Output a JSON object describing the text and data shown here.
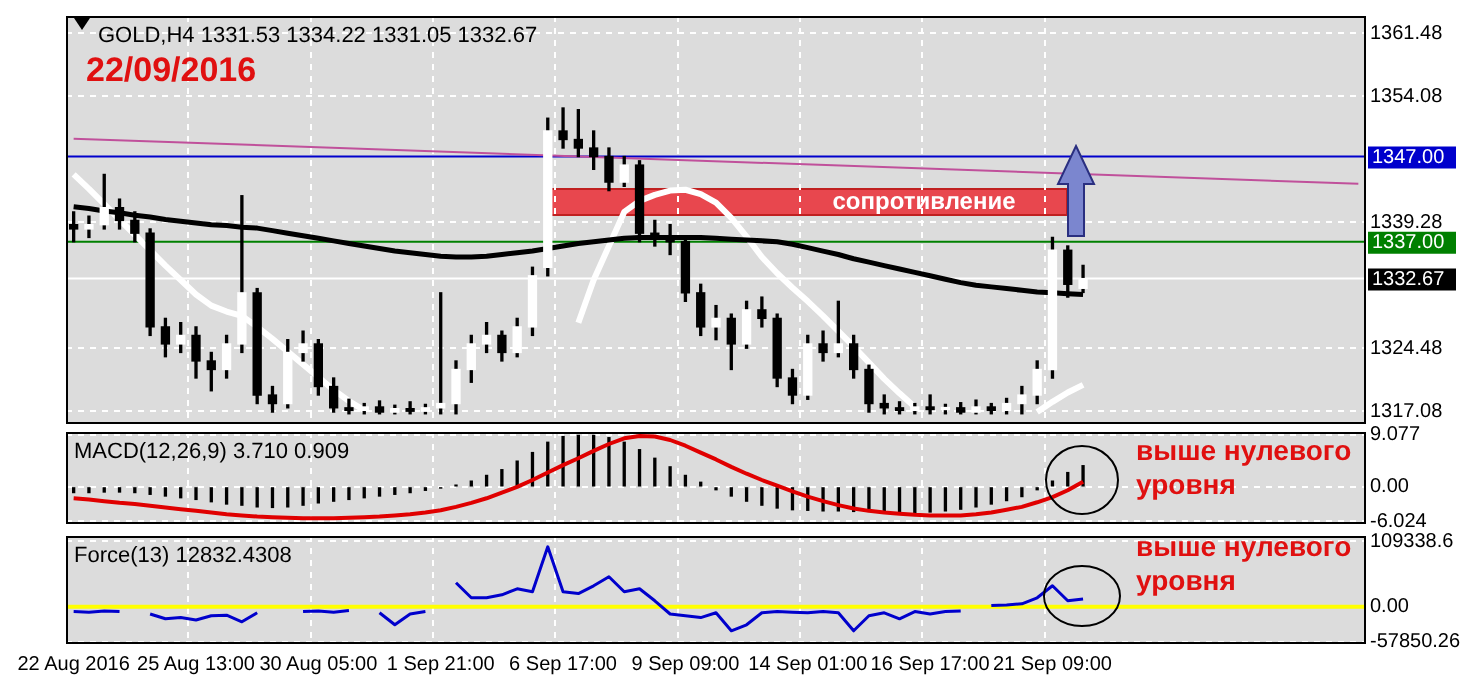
{
  "chart_data": [
    {
      "type": "candlestick",
      "title": "GOLD,H4 1331.53 1334.22 1331.05 1332.67",
      "categories": [
        null,
        null,
        null,
        null,
        null,
        null,
        null,
        null,
        null,
        null,
        null,
        null,
        null,
        null,
        null,
        null,
        null,
        null,
        null,
        null,
        null,
        null,
        null,
        null,
        null,
        null,
        null,
        null,
        null,
        null,
        null,
        null,
        null,
        null,
        null,
        null,
        null,
        null,
        null,
        null,
        null,
        null,
        null,
        null,
        null,
        null,
        null,
        null,
        null,
        null,
        null,
        null,
        null,
        null,
        null,
        null,
        null,
        null,
        null,
        null,
        null,
        null,
        null,
        null,
        null,
        null,
        null,
        null,
        null,
        null,
        null,
        null,
        null,
        null,
        null,
        null,
        null,
        null,
        null,
        null,
        null,
        null,
        null,
        null,
        null
      ],
      "ohlc": [
        [
          1339,
          1340.5,
          1337,
          1338.5
        ],
        [
          1338.5,
          1340,
          1337.5,
          1339
        ],
        [
          1339,
          1344.9,
          1338.5,
          1341
        ],
        [
          1341,
          1342,
          1338.5,
          1339.5
        ],
        [
          1339.5,
          1340.5,
          1337,
          1338
        ],
        [
          1338,
          1338.5,
          1326,
          1327
        ],
        [
          1327,
          1328,
          1323.5,
          1325
        ],
        [
          1325,
          1327.5,
          1324,
          1326
        ],
        [
          1326,
          1327,
          1321,
          1323
        ],
        [
          1323,
          1324,
          1319.5,
          1322
        ],
        [
          1322,
          1326,
          1321,
          1325
        ],
        [
          1325,
          1342.4,
          1324,
          1331
        ],
        [
          1331,
          1331.5,
          1318,
          1319
        ],
        [
          1319,
          1320,
          1317,
          1318
        ],
        [
          1318,
          1325.5,
          1317.5,
          1324
        ],
        [
          1324,
          1326.5,
          1323,
          1325
        ],
        [
          1325,
          1325.5,
          1319,
          1320
        ],
        [
          1320,
          1321,
          1317,
          1317.5
        ],
        [
          1317.5,
          1318.5,
          1316.8,
          1317.2
        ],
        [
          1317.2,
          1318,
          1316.8,
          1317.6
        ],
        [
          1317.6,
          1318.3,
          1316.8,
          1317
        ],
        [
          1317,
          1317.8,
          1316.8,
          1317.4
        ],
        [
          1317.4,
          1318.2,
          1316.8,
          1317.1
        ],
        [
          1317.1,
          1317.9,
          1316.8,
          1317.5
        ],
        [
          1317.5,
          1331,
          1316.8,
          1318
        ],
        [
          1318,
          1323,
          1316.8,
          1322
        ],
        [
          1322,
          1326,
          1320.5,
          1325
        ],
        [
          1325,
          1327.5,
          1324,
          1326
        ],
        [
          1326,
          1326.5,
          1323,
          1324
        ],
        [
          1324,
          1328,
          1323.5,
          1327
        ],
        [
          1327,
          1334,
          1326,
          1333
        ],
        [
          1334,
          1351.5,
          1333,
          1350
        ],
        [
          1350,
          1352.7,
          1348,
          1349
        ],
        [
          1349,
          1352.5,
          1347,
          1348
        ],
        [
          1348,
          1350,
          1345.5,
          1347
        ],
        [
          1347,
          1348,
          1343,
          1344
        ],
        [
          1344,
          1347,
          1343.5,
          1346
        ],
        [
          1346,
          1346.5,
          1337,
          1338
        ],
        [
          1338,
          1339.5,
          1336.5,
          1337.5
        ],
        [
          1337.5,
          1339,
          1335.5,
          1337
        ],
        [
          1337,
          1337.5,
          1330,
          1331
        ],
        [
          1331,
          1332,
          1326,
          1327
        ],
        [
          1327,
          1329.5,
          1325.5,
          1328
        ],
        [
          1328,
          1328.5,
          1322,
          1325
        ],
        [
          1325,
          1330,
          1324.5,
          1329
        ],
        [
          1329,
          1330.5,
          1327,
          1328
        ],
        [
          1328,
          1328.5,
          1320,
          1321
        ],
        [
          1321,
          1322,
          1318,
          1319
        ],
        [
          1319,
          1326,
          1318.5,
          1325
        ],
        [
          1325,
          1326.5,
          1323,
          1324
        ],
        [
          1324,
          1330,
          1323.5,
          1325
        ],
        [
          1325,
          1326,
          1321,
          1322
        ],
        [
          1322,
          1322.5,
          1317,
          1318
        ],
        [
          1318,
          1319,
          1316.8,
          1317.5
        ],
        [
          1317.5,
          1318.2,
          1316.8,
          1317.2
        ],
        [
          1317.2,
          1318,
          1316.8,
          1317.6
        ],
        [
          1317.6,
          1319,
          1316.8,
          1317.3
        ],
        [
          1317.3,
          1317.9,
          1316.8,
          1317.5
        ],
        [
          1317.5,
          1318.1,
          1316.8,
          1317
        ],
        [
          1317,
          1318.4,
          1316.8,
          1317.6
        ],
        [
          1317.6,
          1318,
          1316.8,
          1317.2
        ],
        [
          1317.2,
          1318.6,
          1316.8,
          1318
        ],
        [
          1318,
          1320,
          1316.8,
          1319
        ],
        [
          1319,
          1323,
          1318,
          1322
        ],
        [
          1322,
          1337.5,
          1321,
          1336
        ],
        [
          1336,
          1336.5,
          1330.5,
          1332
        ],
        [
          1331.53,
          1334.22,
          1331.05,
          1332.67
        ],
        null,
        null,
        null,
        null,
        null,
        null,
        null,
        null,
        null,
        null,
        null,
        null,
        null,
        null,
        null,
        null,
        null,
        null
      ],
      "series": [
        {
          "type": "line",
          "color": "#000000",
          "values": [
            1341.1,
            1340.9,
            1340.6,
            1340.4,
            1340.1,
            1339.9,
            1339.6,
            1339.4,
            1339.2,
            1339.0,
            1338.9,
            1338.7,
            1338.6,
            1338.3,
            1338.0,
            1337.7,
            1337.4,
            1337.1,
            1336.8,
            1336.5,
            1336.2,
            1335.9,
            1335.7,
            1335.5,
            1335.3,
            1335.2,
            1335.2,
            1335.3,
            1335.5,
            1335.7,
            1335.9,
            1336.2,
            1336.5,
            1336.8,
            1337.0,
            1337.2,
            1337.4,
            1337.5,
            1337.5,
            1337.5,
            1337.5,
            1337.5,
            1337.4,
            1337.3,
            1337.2,
            1337.1,
            1337.0,
            1336.7,
            1336.3,
            1335.9,
            1335.5,
            1335.0,
            1334.6,
            1334.2,
            1333.8,
            1333.4,
            1333.0,
            1332.6,
            1332.2,
            1331.9,
            1331.7,
            1331.5,
            1331.3,
            1331.1,
            1331.0,
            1330.9,
            1330.8,
            null,
            null,
            null,
            null,
            null,
            null,
            null,
            null,
            null,
            null,
            null,
            null,
            null,
            null,
            null,
            null,
            null,
            null
          ]
        },
        {
          "type": "line",
          "color": "#ffffff",
          "values": [
            1344.9,
            1343.2,
            1341.4,
            1339.6,
            1337.8,
            1336.0,
            1334.2,
            1332.5,
            1330.8,
            1329.5,
            1328.8,
            1328.3,
            1327.0,
            1325.6,
            1324.1,
            1322.6,
            1321.1,
            1319.6,
            1318.3,
            1317.2,
            null,
            null,
            null,
            null,
            null,
            null,
            null,
            null,
            null,
            null,
            null,
            null,
            null,
            1327.5,
            1332.5,
            1336.5,
            1340.5,
            1341.8,
            1342.5,
            1343.0,
            1343.1,
            1342.6,
            1341.6,
            1339.8,
            1337.6,
            1335.2,
            1333.3,
            1331.6,
            1330.0,
            1328.3,
            1326.5,
            1324.7,
            1322.8,
            1320.9,
            1319.2,
            1317.6,
            null,
            null,
            null,
            null,
            null,
            null,
            null,
            1317.0,
            1318.2,
            1319.3,
            1320.2,
            null,
            null,
            null,
            null,
            null,
            null,
            null,
            null,
            null,
            null,
            null,
            null,
            null,
            null,
            null,
            null,
            null,
            null
          ]
        },
        {
          "type": "line",
          "color": "#c0509b",
          "values": [
            1349.1,
            null,
            null,
            null,
            null,
            null,
            null,
            null,
            null,
            null,
            null,
            null,
            null,
            null,
            null,
            null,
            null,
            null,
            null,
            null,
            null,
            null,
            null,
            null,
            null,
            null,
            null,
            null,
            null,
            null,
            null,
            null,
            null,
            null,
            null,
            null,
            null,
            null,
            null,
            null,
            null,
            null,
            null,
            null,
            null,
            null,
            null,
            null,
            null,
            null,
            null,
            null,
            null,
            null,
            null,
            null,
            null,
            null,
            null,
            null,
            null,
            null,
            null,
            null,
            null,
            null,
            null,
            null,
            null,
            null,
            null,
            null,
            null,
            null,
            null,
            null,
            null,
            null,
            null,
            null,
            null,
            null,
            null,
            null,
            1343.8
          ]
        }
      ],
      "ylim": [
        1315.6,
        1363.5
      ],
      "yticks": [
        1361.48,
        1354.08,
        1339.28,
        1324.48,
        1317.08
      ],
      "ref_lines": [
        {
          "axis": "y",
          "value": 1347,
          "label": "1347.00",
          "color": "#0000cc"
        },
        {
          "axis": "y",
          "value": 1337,
          "label": "1337.00",
          "color": "#008000"
        },
        {
          "axis": "y",
          "value": 1332.67,
          "label": "1332.67",
          "color": "#ffffff"
        }
      ],
      "annotations": [
        "22/09/2016",
        "сопротивление"
      ],
      "grid": true,
      "tick_labels": "y"
    },
    {
      "type": "bar",
      "title": "MACD(12,26,9) 3.710 0.909",
      "categories": [
        null,
        null,
        null,
        null,
        null,
        null,
        null,
        null,
        null,
        null,
        null,
        null,
        null,
        null,
        null,
        null,
        null,
        null,
        null,
        null,
        null,
        null,
        null,
        null,
        null,
        null,
        null,
        null,
        null,
        null,
        null,
        null,
        null,
        null,
        null,
        null,
        null,
        null,
        null,
        null,
        null,
        null,
        null,
        null,
        null,
        null,
        null,
        null,
        null,
        null,
        null,
        null,
        null,
        null,
        null,
        null,
        null,
        null,
        null,
        null,
        null,
        null,
        null,
        null,
        null,
        null,
        null,
        null,
        null,
        null,
        null,
        null,
        null,
        null,
        null,
        null,
        null,
        null,
        null,
        null,
        null,
        null,
        null,
        null,
        null
      ],
      "series": [
        {
          "color": "#000000",
          "values": [
            -1,
            -1,
            -0.9,
            -0.9,
            -1,
            -1.3,
            -1.6,
            -1.9,
            -2.2,
            -2.6,
            -3.0,
            -3.2,
            -3.5,
            -3.6,
            -3.5,
            -3.2,
            -2.8,
            -2.5,
            -2.2,
            -1.9,
            -1.6,
            -1.3,
            -1.0,
            -0.6,
            -0.2,
            0.3,
            1.0,
            2.0,
            3.0,
            4.5,
            6.0,
            7.8,
            8.8,
            9.0,
            9.0,
            8.6,
            7.8,
            6.5,
            5.0,
            3.5,
            2.0,
            0.8,
            -0.5,
            -1.6,
            -2.5,
            -3.2,
            -3.7,
            -4.0,
            -4.1,
            -4.2,
            -4.2,
            -4.3,
            -4.3,
            -4.4,
            -4.4,
            -4.5,
            -4.4,
            -4.2,
            -3.9,
            -3.5,
            -3.0,
            -2.4,
            -1.7,
            -0.5,
            1.0,
            2.5,
            3.7,
            null,
            null,
            null,
            null,
            null,
            null,
            null,
            null,
            null,
            null,
            null,
            null,
            null,
            null,
            null,
            null,
            null,
            null
          ]
        },
        {
          "type": "line",
          "color": "#e00000",
          "values": [
            -2.0,
            -2.2,
            -2.5,
            -2.8,
            -3.0,
            -3.3,
            -3.6,
            -3.9,
            -4.2,
            -4.5,
            -4.8,
            -5.0,
            -5.2,
            -5.3,
            -5.4,
            -5.5,
            -5.5,
            -5.5,
            -5.4,
            -5.3,
            -5.2,
            -5.0,
            -4.8,
            -4.5,
            -4.1,
            -3.5,
            -2.8,
            -2.0,
            -1.0,
            0.0,
            1.2,
            2.5,
            3.8,
            5.0,
            6.3,
            7.5,
            8.5,
            8.9,
            8.8,
            8.2,
            7.2,
            6.0,
            4.8,
            3.5,
            2.3,
            1.2,
            0.2,
            -0.8,
            -1.7,
            -2.5,
            -3.2,
            -3.8,
            -4.2,
            -4.5,
            -4.7,
            -4.9,
            -5.0,
            -5.0,
            -5.0,
            -4.8,
            -4.5,
            -4.0,
            -3.5,
            -2.7,
            -1.8,
            -0.6,
            0.9,
            null,
            null,
            null,
            null,
            null,
            null,
            null,
            null,
            null,
            null,
            null,
            null,
            null,
            null,
            null,
            null,
            null,
            null
          ]
        }
      ],
      "ylim": [
        -6.5,
        9.6
      ],
      "yticks": [
        9.077,
        {
          "value": 0,
          "label": "0.00"
        },
        -6.024
      ],
      "annotations": [
        "выше нулевого уровня"
      ],
      "grid": true,
      "tick_labels": "y"
    },
    {
      "type": "line",
      "title": "Force(13) 12832.4308",
      "categories": [
        "22 Aug 2016",
        null,
        null,
        null,
        null,
        null,
        null,
        null,
        "25 Aug 13:00",
        null,
        null,
        null,
        null,
        null,
        null,
        null,
        "30 Aug 05:00",
        null,
        null,
        null,
        null,
        null,
        null,
        null,
        "1 Sep 21:00",
        null,
        null,
        null,
        null,
        null,
        null,
        null,
        "6 Sep 17:00",
        null,
        null,
        null,
        null,
        null,
        null,
        null,
        "9 Sep 09:00",
        null,
        null,
        null,
        null,
        null,
        null,
        null,
        "14 Sep 01:00",
        null,
        null,
        null,
        null,
        null,
        null,
        null,
        "16 Sep 17:00",
        null,
        null,
        null,
        null,
        null,
        null,
        null,
        "21 Sep 09:00",
        null,
        null,
        null,
        null,
        null,
        null,
        null,
        null,
        null,
        null,
        null,
        null,
        null,
        null,
        null,
        null,
        null,
        null,
        null,
        null
      ],
      "series": [
        {
          "color": "#0000cc",
          "values": [
            -8000,
            -9000,
            -7000,
            -8000,
            null,
            -12000,
            -20000,
            -18000,
            -22000,
            -15000,
            -14000,
            -25000,
            -10000,
            null,
            null,
            -8000,
            -7000,
            -9000,
            -6000,
            null,
            -10000,
            -30000,
            -12000,
            -8000,
            null,
            40000,
            15000,
            15000,
            20000,
            30000,
            25000,
            100000,
            25000,
            22000,
            35000,
            50000,
            25000,
            30000,
            10000,
            -12000,
            -15000,
            -18000,
            -10000,
            -40000,
            -30000,
            -10000,
            -8000,
            -9000,
            -10000,
            -8000,
            -10000,
            -40000,
            -15000,
            -10000,
            -20000,
            -8000,
            -12000,
            -8000,
            -7000,
            null,
            2000,
            3000,
            5000,
            15000,
            35000,
            10000,
            13000,
            null,
            null,
            null,
            null,
            null,
            null,
            null,
            null,
            null,
            null,
            null,
            null,
            null,
            null,
            null,
            null,
            null,
            null
          ]
        }
      ],
      "ylim": [
        -62000,
        118000
      ],
      "yticks": [
        109338.6,
        {
          "value": 0,
          "label": "0.00"
        },
        -57850.26
      ],
      "ref_lines": [
        {
          "axis": "y",
          "value": 0,
          "color": "#ffff00"
        }
      ],
      "annotations": [
        "выше нулевого уровня"
      ],
      "grid": true
    }
  ]
}
